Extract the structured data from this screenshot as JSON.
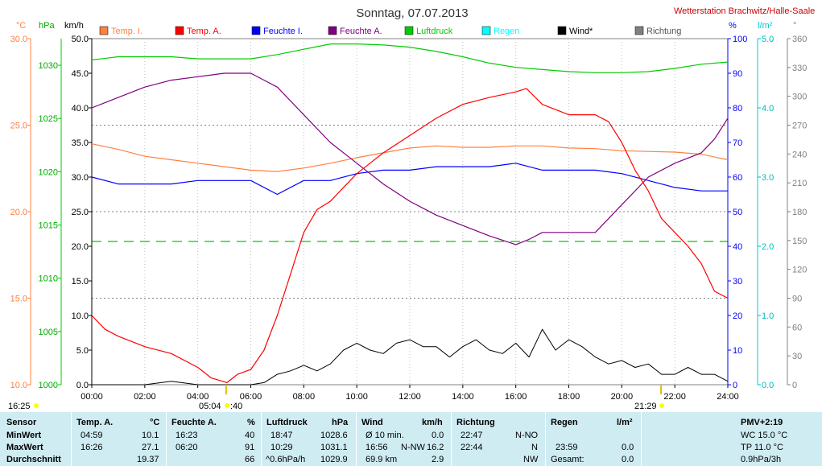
{
  "title": "Sonntag, 07.07.2013",
  "station": "Wetterstation Brachwitz/Halle-Saale",
  "unit_headers": {
    "celsius": "°C",
    "hpa": "hPa",
    "kmh": "km/h",
    "percent": "%",
    "lm2": "l/m²",
    "degree": "°"
  },
  "legend": [
    {
      "label": "Temp. I.",
      "color": "#ff8040"
    },
    {
      "label": "Temp. A.",
      "color": "#ff0000"
    },
    {
      "label": "Feuchte I.",
      "color": "#0000ff"
    },
    {
      "label": "Feuchte A.",
      "color": "#800080"
    },
    {
      "label": "Luftdruck",
      "color": "#00cc00"
    },
    {
      "label": "Regen",
      "color": "#00ffff"
    },
    {
      "label": "Wind*",
      "color": "#000000"
    },
    {
      "label": "Richtung",
      "color": "#808080"
    }
  ],
  "colors": {
    "temp_axis": "#ff8040",
    "pressure_axis": "#00cc00",
    "humidity_axis": "#0000ff",
    "rain_axis": "#00cccc",
    "direction_axis": "#808080",
    "grid": "#808080",
    "station": "#cc0000",
    "stats_bg": "#cfecf3",
    "marker": "#ffff00"
  },
  "sun_markers": {
    "sunrise": "05:04",
    "sunset": "21:29",
    "sunrise_tail": ":40",
    "left_time": "16:25"
  },
  "chart_data": {
    "type": "line",
    "x_ticks": [
      "00:00",
      "02:00",
      "04:00",
      "06:00",
      "08:00",
      "10:00",
      "12:00",
      "14:00",
      "16:00",
      "18:00",
      "20:00",
      "22:00",
      "24:00"
    ],
    "axes": {
      "temperature_c": {
        "range": [
          10,
          30
        ],
        "ticks": [
          "30.0",
          "25.0",
          "20.0",
          "15.0",
          "10.0"
        ]
      },
      "pressure_hpa": {
        "range": [
          1000,
          1032.5
        ],
        "ticks": [
          "1030",
          "1025",
          "1020",
          "1015",
          "1010",
          "1005",
          "1000"
        ]
      },
      "wind_kmh": {
        "range": [
          0,
          50
        ],
        "ticks": [
          "50.0",
          "45.0",
          "40.0",
          "35.0",
          "30.0",
          "25.0",
          "20.0",
          "15.0",
          "10.0",
          "5.0",
          "0.0"
        ]
      },
      "humidity_pct": {
        "range": [
          0,
          100
        ],
        "ticks": [
          "100",
          "90",
          "80",
          "70",
          "60",
          "50",
          "40",
          "30",
          "20",
          "10",
          "0"
        ]
      },
      "rain_lm2": {
        "range": [
          0,
          5
        ],
        "ticks": [
          "5.0",
          "4.0",
          "3.0",
          "2.0",
          "1.0",
          "0.0"
        ]
      },
      "direction_deg": {
        "range": [
          0,
          360
        ],
        "ticks": [
          "360",
          "330",
          "300",
          "270",
          "240",
          "210",
          "180",
          "150",
          "120",
          "90",
          "60",
          "30",
          "0"
        ]
      }
    },
    "dashed_reference_wind_kmh": 20.7,
    "series": [
      {
        "name": "Temp. I.",
        "axis": "wind_kmh",
        "x": [
          0,
          1,
          2,
          3,
          4,
          5,
          6,
          7,
          8,
          9,
          10,
          11,
          12,
          13,
          14,
          15,
          16,
          17,
          18,
          19,
          20,
          21,
          22,
          23,
          24
        ],
        "values": [
          34.8,
          34,
          33,
          32.5,
          32,
          31.5,
          31,
          30.8,
          31.3,
          32,
          32.8,
          33.5,
          34.2,
          34.5,
          34.3,
          34.3,
          34.5,
          34.5,
          34.2,
          34.1,
          33.8,
          33.7,
          33.6,
          33.3,
          32.5
        ]
      },
      {
        "name": "Temp. A.",
        "axis": "wind_kmh",
        "x": [
          0,
          0.5,
          1,
          2,
          3,
          4,
          4.5,
          5.1,
          5.5,
          6,
          6.5,
          7,
          7.5,
          8,
          8.5,
          9,
          9.5,
          10,
          10.5,
          11,
          12,
          13,
          14,
          15,
          16,
          16.4,
          17,
          18,
          19,
          19.5,
          20,
          20.5,
          21,
          21.5,
          22,
          22.5,
          23,
          23.5,
          24
        ],
        "values": [
          10,
          8,
          7,
          5.5,
          4.5,
          2.5,
          1,
          0.3,
          1.5,
          2.2,
          5,
          10,
          16,
          22,
          25.3,
          26.5,
          28.5,
          30.5,
          32,
          33.5,
          36,
          38.5,
          40.5,
          41.5,
          42.3,
          42.8,
          40.5,
          39,
          39,
          38,
          35,
          31,
          28,
          24,
          22,
          20,
          17.5,
          13.5,
          12.5
        ]
      },
      {
        "name": "Feuchte I.",
        "axis": "humidity_pct",
        "x": [
          0,
          1,
          2,
          3,
          4,
          5,
          6,
          7,
          8,
          9,
          10,
          11,
          12,
          13,
          14,
          15,
          16,
          17,
          18,
          19,
          20,
          21,
          22,
          23,
          24
        ],
        "values": [
          60,
          58,
          58,
          58,
          59,
          59,
          59,
          55,
          59,
          59,
          61,
          62,
          62,
          63,
          63,
          63,
          64,
          62,
          62,
          62,
          61,
          59,
          57,
          56,
          56
        ]
      },
      {
        "name": "Feuchte A.",
        "axis": "humidity_pct",
        "x": [
          0,
          1,
          2,
          3,
          4,
          5,
          5.5,
          6,
          6.5,
          7,
          8,
          9,
          10,
          11,
          12,
          13,
          14,
          15,
          16,
          16.5,
          17,
          18,
          19,
          20,
          21,
          22,
          23,
          23.5,
          24
        ],
        "values": [
          80,
          83,
          86,
          88,
          89,
          90,
          90,
          90,
          88,
          86,
          78,
          70,
          64,
          58,
          53,
          49,
          46,
          43,
          40.5,
          42,
          44,
          44,
          44,
          52,
          60,
          64,
          67,
          71,
          77
        ]
      },
      {
        "name": "Luftdruck",
        "axis": "pressure_hpa",
        "x": [
          0,
          1,
          2,
          3,
          4,
          5,
          6,
          7,
          8,
          9,
          10,
          11,
          12,
          13,
          14,
          15,
          16,
          17,
          18,
          19,
          20,
          21,
          22,
          23,
          24
        ],
        "values": [
          1030.5,
          1030.8,
          1030.8,
          1030.8,
          1030.6,
          1030.6,
          1030.6,
          1031,
          1031.5,
          1032,
          1032,
          1031.9,
          1031.7,
          1031.3,
          1030.8,
          1030.2,
          1029.8,
          1029.6,
          1029.4,
          1029.3,
          1029.3,
          1029.4,
          1029.7,
          1030.1,
          1030.3
        ]
      },
      {
        "name": "Wind*",
        "axis": "wind_kmh",
        "x": [
          0,
          1,
          2,
          3,
          4,
          5,
          6,
          6.5,
          7,
          7.5,
          8,
          8.5,
          9,
          9.5,
          10,
          10.5,
          11,
          11.5,
          12,
          12.5,
          13,
          13.5,
          14,
          14.5,
          15,
          15.5,
          16,
          16.5,
          17,
          17.5,
          18,
          18.5,
          19,
          19.5,
          20,
          20.5,
          21,
          21.5,
          22,
          22.5,
          23,
          23.5,
          24
        ],
        "values": [
          0,
          0,
          0,
          0.5,
          0,
          0,
          0,
          0.3,
          1.5,
          2,
          2.8,
          2,
          3,
          5,
          6,
          5,
          4.5,
          6,
          6.5,
          5.5,
          5.5,
          4,
          5.5,
          6.5,
          5,
          4.5,
          6,
          4,
          8,
          5,
          6.5,
          5.5,
          4,
          3,
          3.5,
          2.5,
          3,
          1.5,
          1.5,
          2.5,
          1.5,
          1.5,
          0.5
        ]
      }
    ]
  },
  "stats": {
    "headers": [
      {
        "label": "Sensor",
        "unit": ""
      },
      {
        "label": "Temp. A.",
        "unit": "°C"
      },
      {
        "label": "Feuchte A.",
        "unit": "%"
      },
      {
        "label": "Luftdruck",
        "unit": "hPa"
      },
      {
        "label": "Wind",
        "unit": "km/h"
      },
      {
        "label": "Richtung",
        "unit": ""
      },
      {
        "label": "Regen",
        "unit": "l/m²"
      },
      {
        "label": "PMV+2:19",
        "unit": ""
      }
    ],
    "rows": [
      {
        "label": "MinWert",
        "temp_time": "04:59",
        "temp_val": "10.1",
        "hum_time": "16:23",
        "hum_val": "40",
        "press_time": "18:47",
        "press_val": "1028.6",
        "wind_label": "Ø 10 min.",
        "wind_dir": "",
        "wind_val": "0.0",
        "dir_time": "22:47",
        "dir_val": "N-NO",
        "rain_time": "",
        "rain_val": "",
        "pmv": "WC 15.0 °C"
      },
      {
        "label": "MaxWert",
        "temp_time": "16:26",
        "temp_val": "27.1",
        "hum_time": "06:20",
        "hum_val": "91",
        "press_time": "10:29",
        "press_val": "1031.1",
        "wind_label": "16:56",
        "wind_dir": "N-NW",
        "wind_val": "16.2",
        "dir_time": "22:44",
        "dir_val": "N",
        "rain_time": "23:59",
        "rain_val": "0.0",
        "pmv": "TP 11.0 °C"
      },
      {
        "label": "Durchschnitt",
        "temp_time": "",
        "temp_val": "19.37",
        "hum_time": "",
        "hum_val": "66",
        "press_time": "^0.6hPa/h",
        "press_val": "1029.9",
        "wind_label": "69.9 km",
        "wind_dir": "",
        "wind_val": "2.9",
        "dir_time": "",
        "dir_val": "NW",
        "rain_time": "Gesamt:",
        "rain_val": "0.0",
        "pmv": "0.9hPa/3h"
      }
    ]
  }
}
